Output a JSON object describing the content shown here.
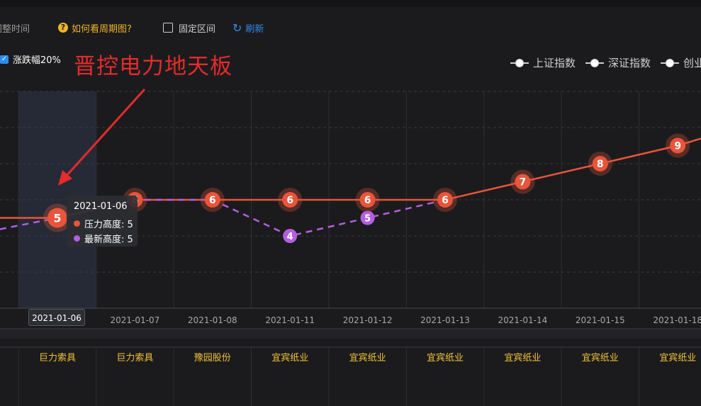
{
  "toolbar": {
    "adjust_time_partial": "调整时间",
    "how_to_read": "如何看周期图?",
    "fixed_range": "固定区间",
    "refresh": "刷新"
  },
  "filter": {
    "rise_fall_label": "涨跌幅20%",
    "checked": true
  },
  "annotation": "晋控电力地天板",
  "legend": [
    {
      "label": "上证指数"
    },
    {
      "label": "深证指数"
    },
    {
      "label": "创业"
    }
  ],
  "tooltip": {
    "date": "2021-01-06",
    "pressure_label": "压力高度: 5",
    "latest_label": "最新高度: 5"
  },
  "colors": {
    "pressure": "#e8553a",
    "latest": "#b35fe0",
    "accent": "#2d8cf0",
    "stock_name": "#f0c23a"
  },
  "chart_data": {
    "type": "line",
    "x": [
      "2021-01-06",
      "2021-01-07",
      "2021-01-08",
      "2021-01-11",
      "2021-01-12",
      "2021-01-13",
      "2021-01-14",
      "2021-01-15",
      "2021-01-18"
    ],
    "x_partial_left": "5",
    "ylim": [
      0,
      12
    ],
    "series": [
      {
        "name": "压力高度",
        "values": [
          5,
          6,
          6,
          6,
          6,
          6,
          7,
          8,
          9
        ],
        "style": "solid"
      },
      {
        "name": "最新高度",
        "values": [
          5,
          6,
          6,
          4,
          5,
          6,
          null,
          null,
          null
        ],
        "style": "dashed"
      }
    ],
    "selected_index": 0,
    "stocks": [
      "巨力索具",
      "巨力索具",
      "豫园股份",
      "宜宾纸业",
      "宜宾纸业",
      "宜宾纸业",
      "宜宾纸业",
      "宜宾纸业",
      "宜宾纸业"
    ]
  }
}
